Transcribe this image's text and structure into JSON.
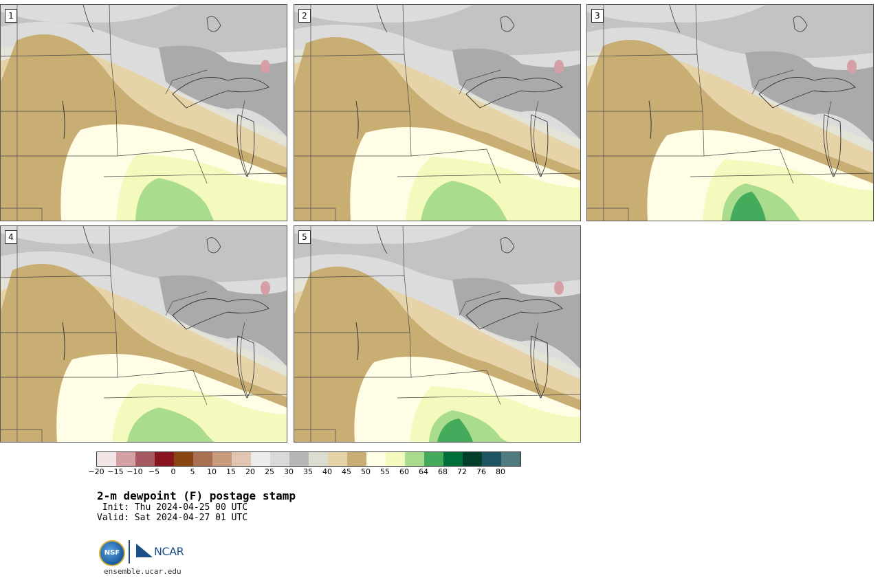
{
  "panels": [
    {
      "number": "1",
      "variant": 1
    },
    {
      "number": "2",
      "variant": 2
    },
    {
      "number": "3",
      "variant": 3
    },
    {
      "number": "4",
      "variant": 4
    },
    {
      "number": "5",
      "variant": 5
    }
  ],
  "colorbar": {
    "colors": [
      "#f0e4e4",
      "#d4a0a6",
      "#a85860",
      "#8a1320",
      "#8b4513",
      "#a87050",
      "#c79a7c",
      "#e2c6b3",
      "#ebebeb",
      "#d9d9d9",
      "#b7b7b7",
      "#dddcd0",
      "#e6d3a8",
      "#c9ae74",
      "#fffde6",
      "#f4f9bd",
      "#a9dc8c",
      "#44ab5c",
      "#00703a",
      "#00402a",
      "#1f5562",
      "#4f7a80"
    ],
    "ticks": [
      "−20",
      "−15",
      "−10",
      "−5",
      "0",
      "5",
      "10",
      "15",
      "20",
      "25",
      "30",
      "35",
      "40",
      "45",
      "50",
      "55",
      "60",
      "64",
      "68",
      "72",
      "76",
      "80"
    ]
  },
  "map_colors": {
    "gray_light": "#dcdcdc",
    "gray_mid": "#c3c3c3",
    "gray_dark": "#aaaaaa",
    "pale_gray": "#e3e3d8",
    "tan_light": "#e6d3a8",
    "tan": "#c9ae74",
    "cream": "#fffde6",
    "yellow": "#f4f9bd",
    "green": "#a9dc8c",
    "green_dark": "#44ab5c",
    "pink": "#d4a0a6"
  },
  "title": "2-m dewpoint (F) postage stamp",
  "init": " Init: Thu 2024-04-25 00 UTC",
  "valid": "Valid: Sat 2024-04-27 01 UTC",
  "logos": {
    "nsf": "NSF",
    "ncar": "NCAR"
  },
  "url": "ensemble.ucar.edu"
}
